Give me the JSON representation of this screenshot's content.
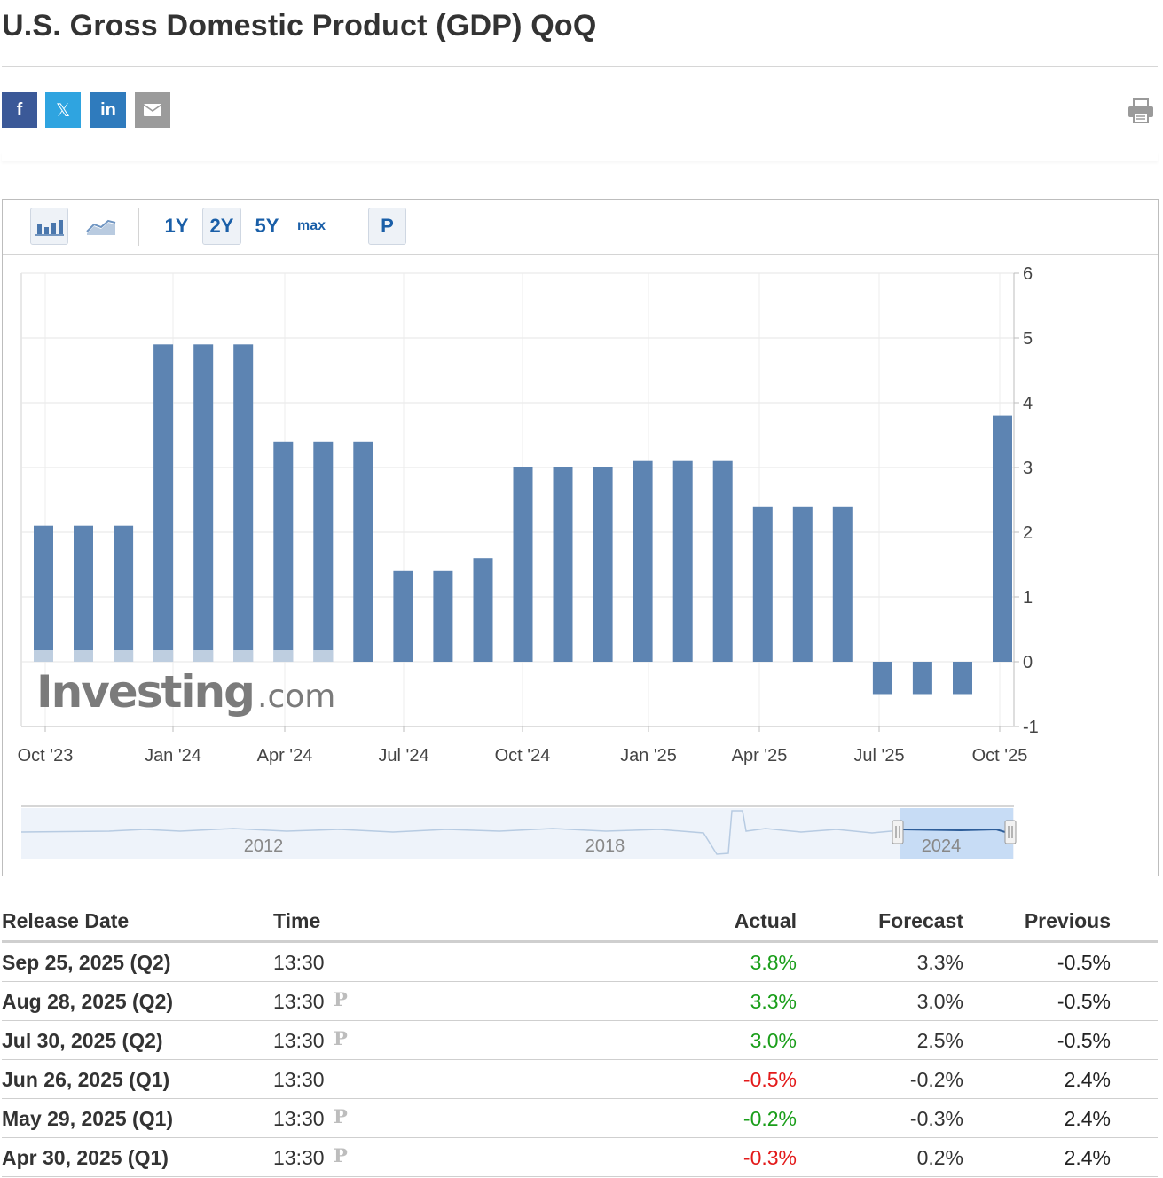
{
  "page": {
    "title": "U.S. Gross Domestic Product (GDP) QoQ"
  },
  "share": [
    {
      "name": "facebook",
      "glyph": "f",
      "color": "#3b5998"
    },
    {
      "name": "twitter",
      "glyph": "𝕏",
      "color": "#2fa4e0"
    },
    {
      "name": "linkedin",
      "glyph": "in",
      "color": "#2f7bbd"
    },
    {
      "name": "email",
      "glyph": "",
      "color": "#9b9b9b"
    }
  ],
  "toolbar": {
    "range_1y": "1Y",
    "range_2y": "2Y",
    "range_5y": "5Y",
    "range_max": "max",
    "preliminary": "P",
    "active_range": "2Y"
  },
  "chart_data": {
    "type": "bar",
    "x_tick_labels": [
      "Oct '23",
      "Jan '24",
      "Apr '24",
      "Jul '24",
      "Oct '24",
      "Jan '25",
      "Apr '25",
      "Jul '25",
      "Oct '25"
    ],
    "y_tick_labels": [
      "6",
      "5",
      "4",
      "3",
      "2",
      "1",
      "0",
      "-1"
    ],
    "ylim": [
      -1,
      6
    ],
    "yticks": [
      -1,
      0,
      1,
      2,
      3,
      4,
      5,
      6
    ],
    "values": [
      2.1,
      2.1,
      2.1,
      4.9,
      4.9,
      4.9,
      3.4,
      3.4,
      3.4,
      1.4,
      1.4,
      1.6,
      3.0,
      3.0,
      3.0,
      3.1,
      3.1,
      3.1,
      2.4,
      2.4,
      2.4,
      -0.5,
      -0.5,
      -0.5,
      3.8
    ],
    "bar_color": "#5d84b2",
    "watermark": "Investing.com",
    "navigator_labels": [
      "2012",
      "2018",
      "2024"
    ]
  },
  "table": {
    "headers": {
      "date": "Release Date",
      "time": "Time",
      "actual": "Actual",
      "forecast": "Forecast",
      "previous": "Previous"
    },
    "rows": [
      {
        "date": "Sep 25, 2025 (Q2)",
        "time": "13:30",
        "prelim": "",
        "actual": "3.8%",
        "forecast": "3.3%",
        "previous": "-0.5%",
        "actual_status": "pos"
      },
      {
        "date": "Aug 28, 2025 (Q2)",
        "time": "13:30",
        "prelim": "P",
        "actual": "3.3%",
        "forecast": "3.0%",
        "previous": "-0.5%",
        "actual_status": "pos"
      },
      {
        "date": "Jul 30, 2025 (Q2)",
        "time": "13:30",
        "prelim": "P",
        "actual": "3.0%",
        "forecast": "2.5%",
        "previous": "-0.5%",
        "actual_status": "pos"
      },
      {
        "date": "Jun 26, 2025 (Q1)",
        "time": "13:30",
        "prelim": "",
        "actual": "-0.5%",
        "forecast": "-0.2%",
        "previous": "2.4%",
        "actual_status": "neg"
      },
      {
        "date": "May 29, 2025 (Q1)",
        "time": "13:30",
        "prelim": "P",
        "actual": "-0.2%",
        "forecast": "-0.3%",
        "previous": "2.4%",
        "actual_status": "pos"
      },
      {
        "date": "Apr 30, 2025 (Q1)",
        "time": "13:30",
        "prelim": "P",
        "actual": "-0.3%",
        "forecast": "0.2%",
        "previous": "2.4%",
        "actual_status": "neg"
      }
    ]
  }
}
